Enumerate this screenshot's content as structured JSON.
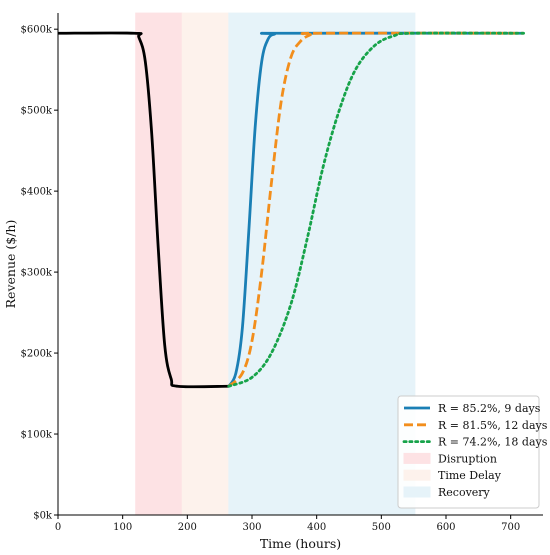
{
  "chart_data": {
    "type": "line",
    "title": "",
    "xlabel": "Time (hours)",
    "ylabel": "Revenue ($/h)",
    "xlim": [
      0,
      750
    ],
    "ylim": [
      0,
      620000
    ],
    "x_ticks": [
      0,
      100,
      200,
      300,
      400,
      500,
      600,
      700
    ],
    "x_tick_labels": [
      "0",
      "100",
      "200",
      "300",
      "400",
      "500",
      "600",
      "700"
    ],
    "y_ticks": [
      0,
      100000,
      200000,
      300000,
      400000,
      500000,
      600000
    ],
    "y_tick_labels": [
      "$0k",
      "$100k",
      "$200k",
      "$300k",
      "$400k",
      "$500k",
      "$600k"
    ],
    "grid": false,
    "legend_position": "bottom-right",
    "regions": [
      {
        "name": "Disruption",
        "x_start": 120,
        "x_end": 192,
        "color": "#fde2e4"
      },
      {
        "name": "Time Delay",
        "x_start": 192,
        "x_end": 264,
        "color": "#fdf2ec"
      },
      {
        "name": "Recovery",
        "x_start": 264,
        "x_end": 552,
        "color": "#e6f3f9"
      }
    ],
    "baseline": {
      "color": "#000000",
      "points": [
        [
          0,
          595000
        ],
        [
          118,
          595000
        ],
        [
          125,
          590000
        ],
        [
          135,
          560000
        ],
        [
          145,
          470000
        ],
        [
          155,
          330000
        ],
        [
          165,
          210000
        ],
        [
          175,
          168000
        ],
        [
          185,
          159000
        ],
        [
          264,
          159000
        ]
      ]
    },
    "series": [
      {
        "name": "R = 85.2%, 9 days",
        "color": "#1a7fb5",
        "style": "solid",
        "x": [
          264,
          275,
          285,
          295,
          305,
          315,
          325,
          335,
          345,
          720
        ],
        "y": [
          159000,
          175000,
          230000,
          350000,
          480000,
          560000,
          588000,
          594000,
          595000,
          595000
        ]
      },
      {
        "name": "R = 81.5%, 12 days",
        "color": "#f28e1c",
        "style": "dashed",
        "x": [
          264,
          285,
          300,
          315,
          330,
          345,
          360,
          375,
          390,
          405,
          720
        ],
        "y": [
          159000,
          175000,
          215000,
          300000,
          410000,
          510000,
          565000,
          585000,
          593000,
          595000,
          595000
        ]
      },
      {
        "name": "R = 74.2%, 18 days",
        "color": "#17a34a",
        "style": "dotted",
        "x": [
          264,
          300,
          330,
          360,
          385,
          410,
          435,
          460,
          490,
          520,
          550,
          720
        ],
        "y": [
          159000,
          170000,
          200000,
          260000,
          340000,
          430000,
          500000,
          550000,
          580000,
          592000,
          595000,
          595000
        ]
      }
    ]
  }
}
